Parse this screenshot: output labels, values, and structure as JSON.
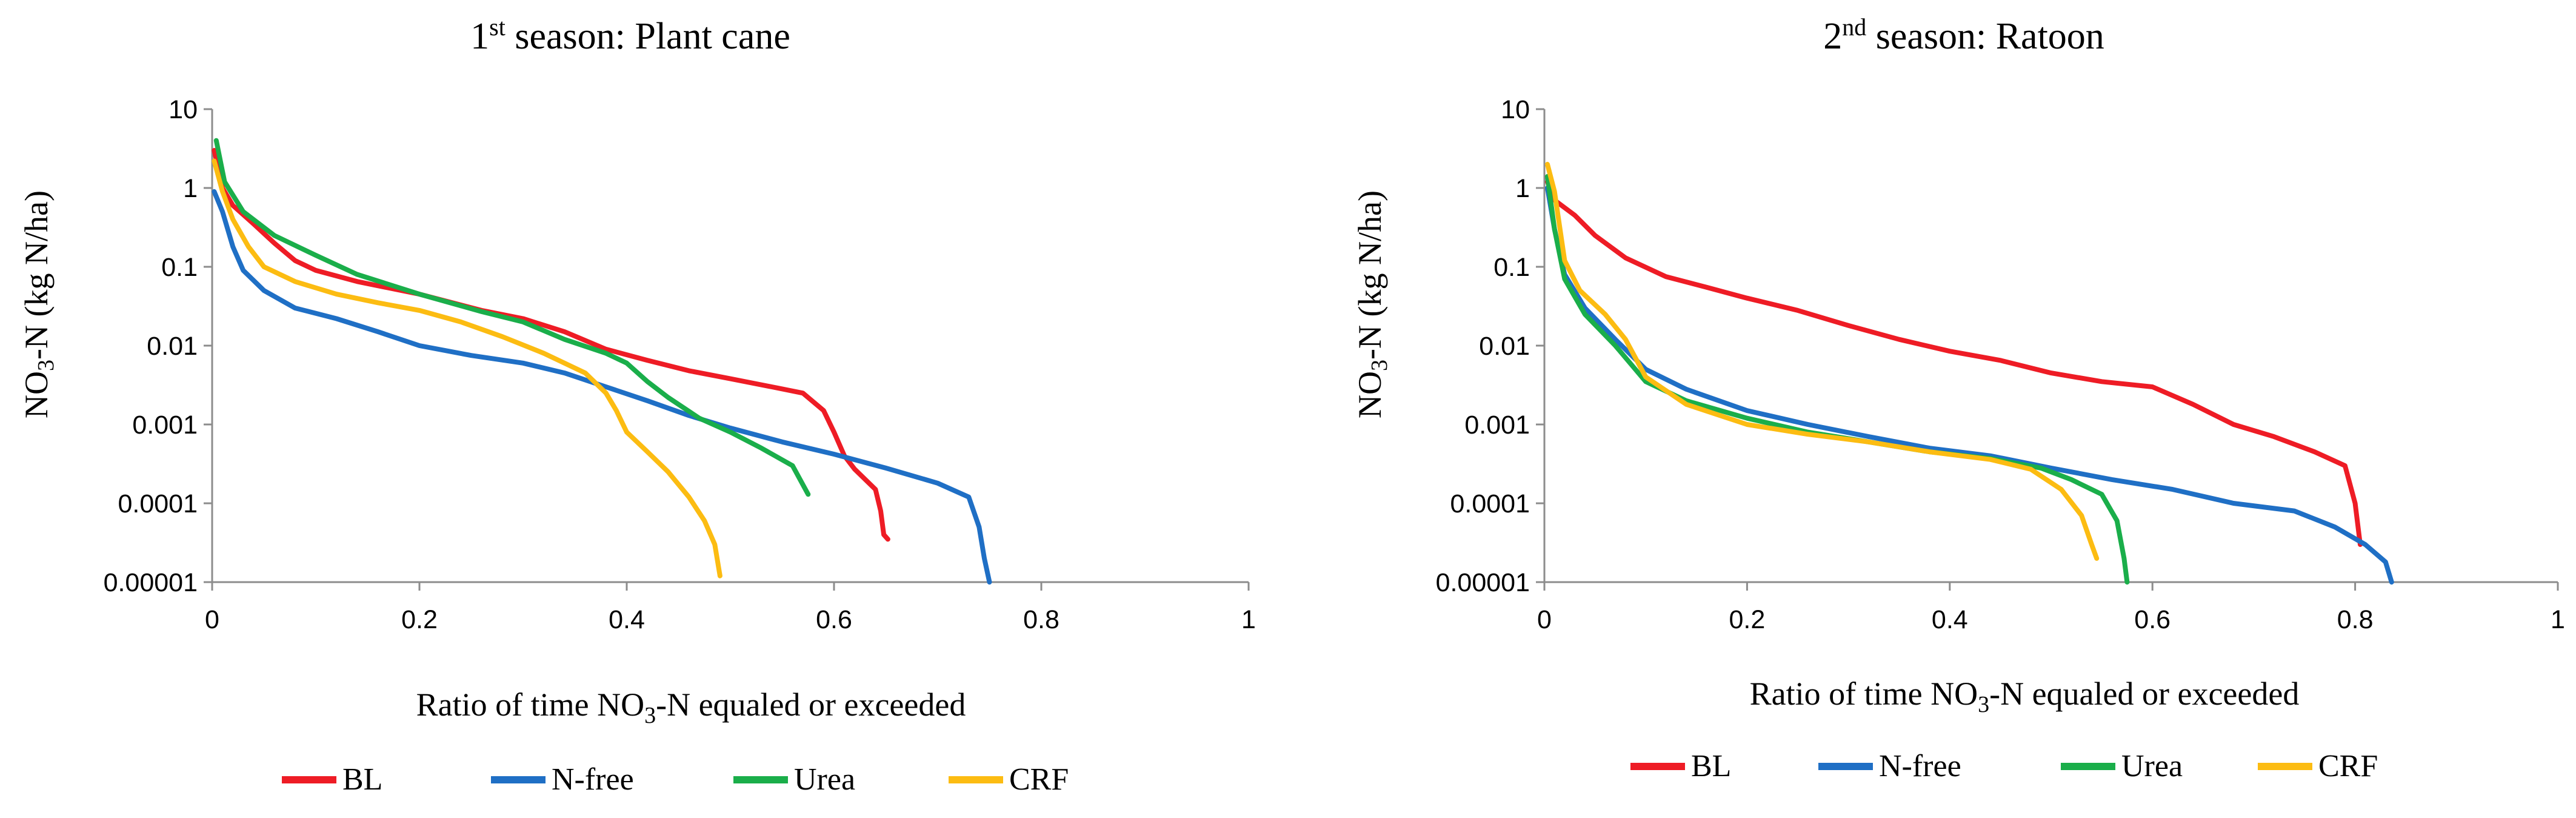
{
  "colors": {
    "BL": "#ee1c25",
    "N-free": "#1f6fc5",
    "Urea": "#1aae4a",
    "CRF": "#fcbc12",
    "axis": "#8c8c8c"
  },
  "chart_data": [
    {
      "type": "line",
      "title_prefix": "1",
      "title_sup": "st",
      "title_rest": " season:  Plant cane",
      "ylabel_prefix": "NO",
      "ylabel_sub": "3",
      "ylabel_rest": "-N (kg N/ha)",
      "xlabel_prefix": "Ratio of time NO",
      "xlabel_sub": "3",
      "xlabel_rest": "-N equaled or exceeded",
      "xlim": [
        0,
        1
      ],
      "ylim": [
        1e-05,
        10
      ],
      "yscale": "log",
      "xticks": [
        0,
        0.2,
        0.4,
        0.6,
        0.8,
        1
      ],
      "xtick_labels": [
        "0",
        "0.2",
        "0.4",
        "0.6",
        "0.8",
        "1"
      ],
      "yticks": [
        1e-05,
        0.0001,
        0.001,
        0.01,
        0.1,
        1,
        10
      ],
      "ytick_labels": [
        "0.00001",
        "0.0001",
        "0.001",
        "0.01",
        "0.1",
        "1",
        "10"
      ],
      "legend": [
        "BL",
        "N-free",
        "Urea",
        "CRF"
      ],
      "series": [
        {
          "name": "BL",
          "points": [
            [
              0.002,
              3
            ],
            [
              0.01,
              1
            ],
            [
              0.02,
              0.6
            ],
            [
              0.04,
              0.35
            ],
            [
              0.06,
              0.2
            ],
            [
              0.08,
              0.12
            ],
            [
              0.1,
              0.09
            ],
            [
              0.14,
              0.065
            ],
            [
              0.2,
              0.045
            ],
            [
              0.26,
              0.028
            ],
            [
              0.3,
              0.022
            ],
            [
              0.34,
              0.015
            ],
            [
              0.38,
              0.009
            ],
            [
              0.42,
              0.0065
            ],
            [
              0.46,
              0.0048
            ],
            [
              0.5,
              0.0038
            ],
            [
              0.54,
              0.003
            ],
            [
              0.57,
              0.0025
            ],
            [
              0.59,
              0.0015
            ],
            [
              0.6,
              0.0008
            ],
            [
              0.61,
              0.0004
            ],
            [
              0.62,
              0.00027
            ],
            [
              0.64,
              0.00015
            ],
            [
              0.645,
              8e-05
            ],
            [
              0.648,
              4e-05
            ],
            [
              0.652,
              3.5e-05
            ]
          ]
        },
        {
          "name": "N-free",
          "points": [
            [
              0.002,
              0.9
            ],
            [
              0.01,
              0.5
            ],
            [
              0.02,
              0.18
            ],
            [
              0.03,
              0.09
            ],
            [
              0.05,
              0.05
            ],
            [
              0.08,
              0.03
            ],
            [
              0.12,
              0.022
            ],
            [
              0.16,
              0.015
            ],
            [
              0.2,
              0.01
            ],
            [
              0.25,
              0.0075
            ],
            [
              0.3,
              0.006
            ],
            [
              0.34,
              0.0045
            ],
            [
              0.38,
              0.003
            ],
            [
              0.42,
              0.002
            ],
            [
              0.46,
              0.0013
            ],
            [
              0.5,
              0.0009
            ],
            [
              0.55,
              0.0006
            ],
            [
              0.6,
              0.00042
            ],
            [
              0.65,
              0.00028
            ],
            [
              0.7,
              0.00018
            ],
            [
              0.73,
              0.00012
            ],
            [
              0.74,
              5e-05
            ],
            [
              0.745,
              2e-05
            ],
            [
              0.75,
              1e-05
            ]
          ]
        },
        {
          "name": "Urea",
          "points": [
            [
              0.004,
              4
            ],
            [
              0.012,
              1.2
            ],
            [
              0.03,
              0.5
            ],
            [
              0.06,
              0.25
            ],
            [
              0.1,
              0.14
            ],
            [
              0.14,
              0.08
            ],
            [
              0.2,
              0.045
            ],
            [
              0.26,
              0.027
            ],
            [
              0.3,
              0.02
            ],
            [
              0.34,
              0.012
            ],
            [
              0.38,
              0.008
            ],
            [
              0.4,
              0.006
            ],
            [
              0.42,
              0.0035
            ],
            [
              0.44,
              0.0022
            ],
            [
              0.47,
              0.0012
            ],
            [
              0.5,
              0.0008
            ],
            [
              0.53,
              0.0005
            ],
            [
              0.56,
              0.0003
            ],
            [
              0.575,
              0.00013
            ]
          ]
        },
        {
          "name": "CRF",
          "points": [
            [
              0.002,
              2.2
            ],
            [
              0.01,
              0.9
            ],
            [
              0.02,
              0.4
            ],
            [
              0.035,
              0.18
            ],
            [
              0.05,
              0.1
            ],
            [
              0.08,
              0.065
            ],
            [
              0.12,
              0.045
            ],
            [
              0.16,
              0.035
            ],
            [
              0.2,
              0.028
            ],
            [
              0.24,
              0.02
            ],
            [
              0.28,
              0.013
            ],
            [
              0.32,
              0.008
            ],
            [
              0.36,
              0.0045
            ],
            [
              0.38,
              0.0025
            ],
            [
              0.39,
              0.0015
            ],
            [
              0.4,
              0.0008
            ],
            [
              0.42,
              0.00045
            ],
            [
              0.44,
              0.00025
            ],
            [
              0.46,
              0.00012
            ],
            [
              0.475,
              6e-05
            ],
            [
              0.485,
              3e-05
            ],
            [
              0.49,
              1.2e-05
            ]
          ]
        }
      ]
    },
    {
      "type": "line",
      "title_prefix": "2",
      "title_sup": "nd",
      "title_rest": " season:  Ratoon",
      "ylabel_prefix": "NO",
      "ylabel_sub": "3",
      "ylabel_rest": "-N (kg N/ha)",
      "xlabel_prefix": "Ratio of time NO",
      "xlabel_sub": "3",
      "xlabel_rest": "-N equaled or exceeded",
      "xlim": [
        0,
        1
      ],
      "ylim": [
        1e-05,
        10
      ],
      "yscale": "log",
      "xticks": [
        0,
        0.2,
        0.4,
        0.6,
        0.8,
        1
      ],
      "xtick_labels": [
        "0",
        "0.2",
        "0.4",
        "0.6",
        "0.8",
        "1"
      ],
      "yticks": [
        1e-05,
        0.0001,
        0.001,
        0.01,
        0.1,
        1,
        10
      ],
      "ytick_labels": [
        "0.00001",
        "0.0001",
        "0.001",
        "0.01",
        "0.1",
        "1",
        "10"
      ],
      "legend": [
        "BL",
        "N-free",
        "Urea",
        "CRF"
      ],
      "series": [
        {
          "name": "BL",
          "points": [
            [
              0.003,
              1.2
            ],
            [
              0.01,
              0.7
            ],
            [
              0.03,
              0.45
            ],
            [
              0.05,
              0.25
            ],
            [
              0.08,
              0.13
            ],
            [
              0.12,
              0.075
            ],
            [
              0.16,
              0.055
            ],
            [
              0.2,
              0.04
            ],
            [
              0.25,
              0.028
            ],
            [
              0.3,
              0.018
            ],
            [
              0.35,
              0.012
            ],
            [
              0.4,
              0.0085
            ],
            [
              0.45,
              0.0065
            ],
            [
              0.5,
              0.0045
            ],
            [
              0.55,
              0.0035
            ],
            [
              0.6,
              0.003
            ],
            [
              0.64,
              0.0018
            ],
            [
              0.68,
              0.001
            ],
            [
              0.72,
              0.0007
            ],
            [
              0.76,
              0.00045
            ],
            [
              0.79,
              0.0003
            ],
            [
              0.8,
              0.0001
            ],
            [
              0.805,
              3e-05
            ]
          ]
        },
        {
          "name": "N-free",
          "points": [
            [
              0.003,
              1
            ],
            [
              0.01,
              0.3
            ],
            [
              0.02,
              0.08
            ],
            [
              0.04,
              0.03
            ],
            [
              0.07,
              0.012
            ],
            [
              0.1,
              0.005
            ],
            [
              0.14,
              0.0028
            ],
            [
              0.2,
              0.0015
            ],
            [
              0.26,
              0.001
            ],
            [
              0.32,
              0.0007
            ],
            [
              0.38,
              0.0005
            ],
            [
              0.44,
              0.0004
            ],
            [
              0.5,
              0.00028
            ],
            [
              0.56,
              0.0002
            ],
            [
              0.62,
              0.00015
            ],
            [
              0.68,
              0.0001
            ],
            [
              0.74,
              8e-05
            ],
            [
              0.78,
              5e-05
            ],
            [
              0.81,
              3e-05
            ],
            [
              0.83,
              1.8e-05
            ],
            [
              0.836,
              1e-05
            ]
          ]
        },
        {
          "name": "Urea",
          "points": [
            [
              0.003,
              1.4
            ],
            [
              0.01,
              0.3
            ],
            [
              0.02,
              0.07
            ],
            [
              0.04,
              0.025
            ],
            [
              0.07,
              0.01
            ],
            [
              0.1,
              0.0035
            ],
            [
              0.14,
              0.002
            ],
            [
              0.2,
              0.0012
            ],
            [
              0.26,
              0.0008
            ],
            [
              0.32,
              0.0006
            ],
            [
              0.38,
              0.00045
            ],
            [
              0.44,
              0.00037
            ],
            [
              0.49,
              0.00028
            ],
            [
              0.52,
              0.0002
            ],
            [
              0.55,
              0.00013
            ],
            [
              0.565,
              6e-05
            ],
            [
              0.572,
              2e-05
            ],
            [
              0.575,
              1e-05
            ]
          ]
        },
        {
          "name": "CRF",
          "points": [
            [
              0.003,
              2
            ],
            [
              0.01,
              0.9
            ],
            [
              0.02,
              0.12
            ],
            [
              0.035,
              0.05
            ],
            [
              0.06,
              0.025
            ],
            [
              0.08,
              0.012
            ],
            [
              0.1,
              0.004
            ],
            [
              0.14,
              0.0018
            ],
            [
              0.2,
              0.001
            ],
            [
              0.26,
              0.00075
            ],
            [
              0.32,
              0.0006
            ],
            [
              0.38,
              0.00045
            ],
            [
              0.44,
              0.00036
            ],
            [
              0.48,
              0.00027
            ],
            [
              0.51,
              0.00015
            ],
            [
              0.53,
              7e-05
            ],
            [
              0.54,
              3e-05
            ],
            [
              0.545,
              2e-05
            ]
          ]
        }
      ]
    }
  ]
}
